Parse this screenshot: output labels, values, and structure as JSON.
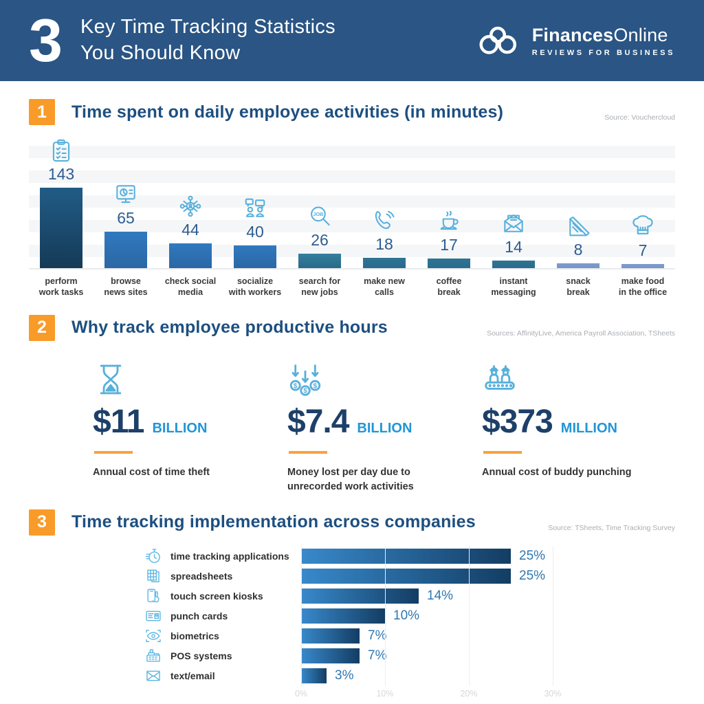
{
  "header": {
    "count": "3",
    "title_line1": "Key Time Tracking Statistics",
    "title_line2": "You Should Know",
    "bg_color": "#2a5584",
    "brand": {
      "logo_icon": "cloud-infinity-icon",
      "name_bold": "Finances",
      "name_regular": "Online",
      "tagline": "REVIEWS FOR BUSINESS"
    }
  },
  "colors": {
    "accent_orange": "#f99b28",
    "section_title_blue": "#1d4f80",
    "icon_light_blue": "#57b0dc",
    "value_blue": "#2c5c90",
    "stat_navy": "#1d4068",
    "stat_unit_blue": "#2196d6",
    "source_gray": "#aaaeb3"
  },
  "sections": [
    {
      "number": "1",
      "title": "Time spent on daily employee activities (in minutes)",
      "source": "Source: Vouchercloud"
    },
    {
      "number": "2",
      "title": "Why track employee productive hours",
      "source": "Sources: AffinityLive, America Payroll Association, TSheets"
    },
    {
      "number": "3",
      "title": "Time tracking implementation across companies",
      "source": "Source: TSheets, Time Tracking Survey"
    }
  ],
  "chart_data": [
    {
      "type": "bar",
      "title": "Time spent on daily employee activities (in minutes)",
      "source": "Source: Vouchercloud",
      "unit": "minutes",
      "categories": [
        "perform work tasks",
        "browse news sites",
        "check social media",
        "socialize with workers",
        "search for new jobs",
        "make new calls",
        "coffee break",
        "instant messaging",
        "snack break",
        "make food in the office"
      ],
      "category_lines": [
        [
          "perform",
          "work tasks"
        ],
        [
          "browse",
          "news sites"
        ],
        [
          "check social",
          "media"
        ],
        [
          "socialize",
          "with workers"
        ],
        [
          "search for",
          "new jobs"
        ],
        [
          "make new",
          "calls"
        ],
        [
          "coffee",
          "break"
        ],
        [
          "instant",
          "messaging"
        ],
        [
          "snack",
          "break"
        ],
        [
          "make food",
          "in the office"
        ]
      ],
      "values": [
        143,
        65,
        44,
        40,
        26,
        18,
        17,
        14,
        8,
        7
      ],
      "icons": [
        "clipboard-checklist-icon",
        "news-monitor-icon",
        "social-network-icon",
        "coworkers-chat-icon",
        "job-search-icon",
        "phone-call-icon",
        "coffee-cup-icon",
        "open-envelope-icon",
        "sandwich-icon",
        "chef-hat-icon"
      ],
      "bar_colors": [
        [
          "#215c86",
          "#153a57"
        ],
        [
          "#3079bf",
          "#2b67a4"
        ],
        [
          "#3079bf",
          "#2b67a4"
        ],
        [
          "#3079bf",
          "#2b67a4"
        ],
        [
          "#347f9f",
          "#2a6a88"
        ],
        [
          "#2e7495",
          "#2a6b8c"
        ],
        [
          "#2e7495",
          "#2a6b8c"
        ],
        [
          "#2e7495",
          "#2a6b8c"
        ],
        [
          "#7e9ccf",
          "#7694c8"
        ],
        [
          "#7e9ccf",
          "#7694c8"
        ]
      ],
      "ylim": [
        0,
        150
      ],
      "grid": "horizontal-bands",
      "legend": "none"
    },
    {
      "type": "bar-horizontal",
      "title": "Time tracking implementation across companies",
      "source": "Source: TSheets, Time Tracking Survey",
      "categories": [
        "time tracking applications",
        "spreadsheets",
        "touch screen kiosks",
        "punch cards",
        "biometrics",
        "POS systems",
        "text/email"
      ],
      "values": [
        25,
        25,
        14,
        10,
        7,
        7,
        3
      ],
      "value_labels": [
        "25%",
        "25%",
        "14%",
        "10%",
        "7%",
        "7%",
        "3%"
      ],
      "icons": [
        "stopwatch-icon",
        "spreadsheet-icon",
        "touch-screen-icon",
        "punch-card-icon",
        "biometrics-eye-icon",
        "pos-register-icon",
        "envelope-icon"
      ],
      "bar_gradient": [
        "#3889cb",
        "#133d63"
      ],
      "x_ticks": [
        "0%",
        "10%",
        "20%",
        "30%"
      ],
      "xlim": [
        0,
        30
      ],
      "grid": "vertical-lines",
      "legend": "none"
    }
  ],
  "stats": {
    "source": "Sources: AffinityLive, America Payroll Association, TSheets",
    "items": [
      {
        "icon": "hourglass-icon",
        "value": "$11",
        "unit": "BILLION",
        "caption": "Annual cost of time theft"
      },
      {
        "icon": "money-loss-icon",
        "value": "$7.4",
        "unit": "BILLION",
        "caption": "Money lost per day due to unrecorded work activities"
      },
      {
        "icon": "assembly-workers-icon",
        "value": "$373",
        "unit": "MILLION",
        "caption": "Annual cost of buddy punching"
      }
    ]
  }
}
